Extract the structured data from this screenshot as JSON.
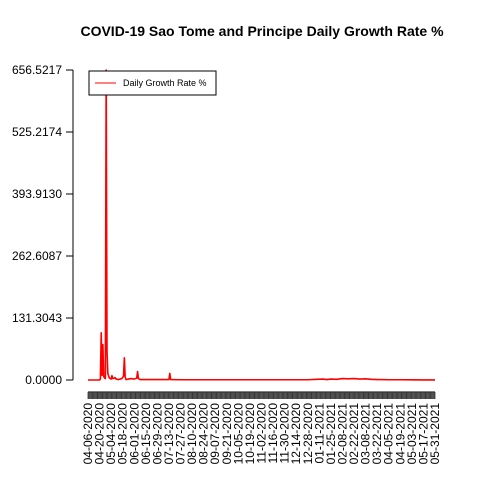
{
  "chart_data": {
    "type": "line",
    "title": "COVID-19 Sao Tome and Principe Daily Growth Rate %",
    "xlabel": "",
    "ylabel": "",
    "ylim": [
      0,
      656.5217
    ],
    "xlim": [
      "2020-04-06",
      "2021-05-31"
    ],
    "yticks": [
      "0.0000",
      "131.3043",
      "262.6087",
      "393.9130",
      "525.2174",
      "656.5217"
    ],
    "ytick_values": [
      0,
      131.3043,
      262.6087,
      393.913,
      525.2174,
      656.5217
    ],
    "xticks": [
      "04-06-2020",
      "04-20-2020",
      "05-04-2020",
      "05-18-2020",
      "06-01-2020",
      "06-15-2020",
      "06-29-2020",
      "07-13-2020",
      "07-27-2020",
      "08-10-2020",
      "08-24-2020",
      "09-07-2020",
      "09-21-2020",
      "10-05-2020",
      "10-19-2020",
      "11-02-2020",
      "11-16-2020",
      "11-30-2020",
      "12-14-2020",
      "12-28-2020",
      "01-11-2021",
      "01-25-2021",
      "02-08-2021",
      "02-22-2021",
      "03-08-2021",
      "03-22-2021",
      "04-05-2021",
      "04-19-2021",
      "05-03-2021",
      "05-17-2021",
      "05-31-2021"
    ],
    "grid": false,
    "legend": {
      "position": "top-left",
      "entries": [
        {
          "name": "Daily Growth Rate %",
          "color": "#ff0000"
        }
      ]
    },
    "series": [
      {
        "name": "Daily Growth Rate %",
        "color": "#ff0000",
        "points": [
          [
            "2020-04-06",
            0
          ],
          [
            "2020-04-20",
            0
          ],
          [
            "2020-04-21",
            2
          ],
          [
            "2020-04-22",
            100
          ],
          [
            "2020-04-23",
            10
          ],
          [
            "2020-04-24",
            75
          ],
          [
            "2020-04-25",
            8
          ],
          [
            "2020-04-26",
            4
          ],
          [
            "2020-04-27",
            3
          ],
          [
            "2020-04-28",
            656.5217
          ],
          [
            "2020-04-29",
            60
          ],
          [
            "2020-04-30",
            14
          ],
          [
            "2020-05-01",
            8
          ],
          [
            "2020-05-02",
            4
          ],
          [
            "2020-05-04",
            2
          ],
          [
            "2020-05-05",
            9
          ],
          [
            "2020-05-06",
            3
          ],
          [
            "2020-05-09",
            5
          ],
          [
            "2020-05-10",
            2
          ],
          [
            "2020-05-13",
            1
          ],
          [
            "2020-05-17",
            3
          ],
          [
            "2020-05-19",
            8
          ],
          [
            "2020-05-20",
            47
          ],
          [
            "2020-05-21",
            6
          ],
          [
            "2020-05-22",
            1
          ],
          [
            "2020-05-25",
            2
          ],
          [
            "2020-05-28",
            3
          ],
          [
            "2020-06-01",
            2
          ],
          [
            "2020-06-04",
            4
          ],
          [
            "2020-06-05",
            18
          ],
          [
            "2020-06-06",
            3
          ],
          [
            "2020-06-08",
            1
          ],
          [
            "2020-06-15",
            1
          ],
          [
            "2020-06-29",
            1
          ],
          [
            "2020-07-10",
            1
          ],
          [
            "2020-07-13",
            1
          ],
          [
            "2020-07-14",
            14
          ],
          [
            "2020-07-15",
            1
          ],
          [
            "2020-07-27",
            0.5
          ],
          [
            "2020-08-24",
            0.5
          ],
          [
            "2020-10-19",
            0.5
          ],
          [
            "2020-12-28",
            0.5
          ],
          [
            "2021-01-15",
            2
          ],
          [
            "2021-01-20",
            1
          ],
          [
            "2021-01-25",
            2
          ],
          [
            "2021-02-01",
            1.5
          ],
          [
            "2021-02-08",
            3
          ],
          [
            "2021-02-15",
            2.5
          ],
          [
            "2021-02-22",
            3
          ],
          [
            "2021-03-01",
            2
          ],
          [
            "2021-03-08",
            2.5
          ],
          [
            "2021-03-15",
            1.5
          ],
          [
            "2021-03-22",
            1
          ],
          [
            "2021-04-05",
            0.5
          ],
          [
            "2021-04-19",
            0.5
          ],
          [
            "2021-05-03",
            0.3
          ],
          [
            "2021-05-17",
            0.2
          ],
          [
            "2021-05-31",
            0.2
          ]
        ]
      }
    ]
  }
}
